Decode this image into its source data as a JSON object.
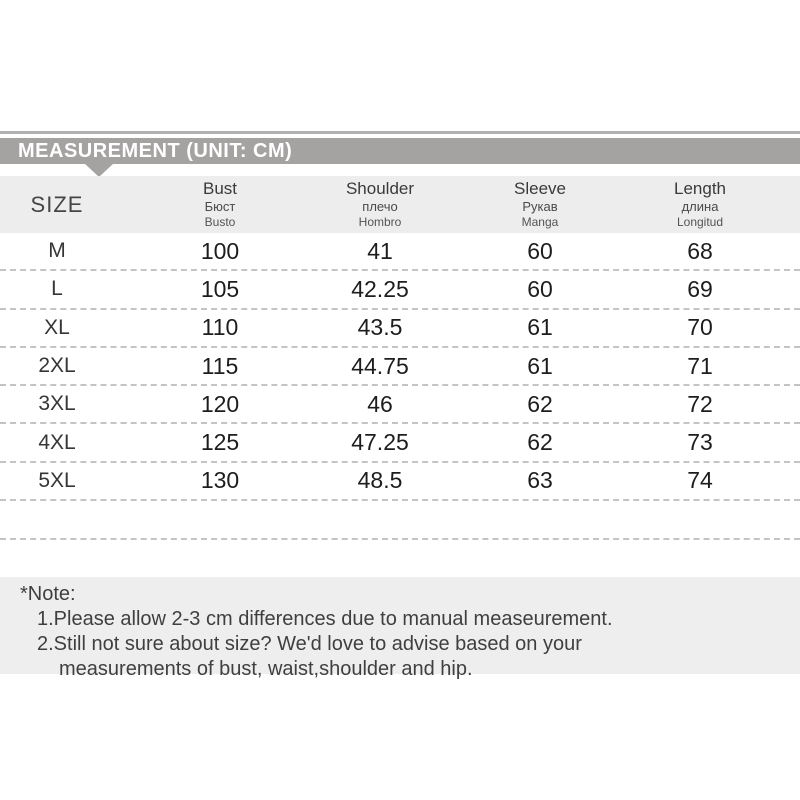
{
  "banner": {
    "title": "MEASUREMENT (UNIT: CM)"
  },
  "table": {
    "columns": [
      {
        "label": "SIZE",
        "sub1": "",
        "sub2": ""
      },
      {
        "label": "Bust",
        "sub1": "Бюст",
        "sub2": "Busto"
      },
      {
        "label": "Shoulder",
        "sub1": "плечо",
        "sub2": "Hombro"
      },
      {
        "label": "Sleeve",
        "sub1": "Рукав",
        "sub2": "Manga"
      },
      {
        "label": "Length",
        "sub1": "длина",
        "sub2": "Longitud"
      }
    ],
    "rows": [
      {
        "size": "M",
        "bust": "100",
        "shoulder": "41",
        "sleeve": "60",
        "length": "68"
      },
      {
        "size": "L",
        "bust": "105",
        "shoulder": "42.25",
        "sleeve": "60",
        "length": "69"
      },
      {
        "size": "XL",
        "bust": "110",
        "shoulder": "43.5",
        "sleeve": "61",
        "length": "70"
      },
      {
        "size": "2XL",
        "bust": "115",
        "shoulder": "44.75",
        "sleeve": "61",
        "length": "71"
      },
      {
        "size": "3XL",
        "bust": "120",
        "shoulder": "46",
        "sleeve": "62",
        "length": "72"
      },
      {
        "size": "4XL",
        "bust": "125",
        "shoulder": "47.25",
        "sleeve": "62",
        "length": "73"
      },
      {
        "size": "5XL",
        "bust": "130",
        "shoulder": "48.5",
        "sleeve": "63",
        "length": "74"
      }
    ]
  },
  "note": {
    "title": "*Note:",
    "lines": [
      "1.Please allow 2-3 cm differences due to manual measeurement.",
      "2.Still not sure about size? We'd love to advise based on your",
      "measurements of bust, waist,shoulder and hip."
    ]
  },
  "colors": {
    "banner_gray": "#a5a2a2",
    "top_line_gray": "#b3b0b0",
    "header_row_bg": "#eeeded",
    "note_bg": "#efeeee",
    "dashed_line": "#c5c3c3",
    "number_text": "#1d1d1d"
  }
}
